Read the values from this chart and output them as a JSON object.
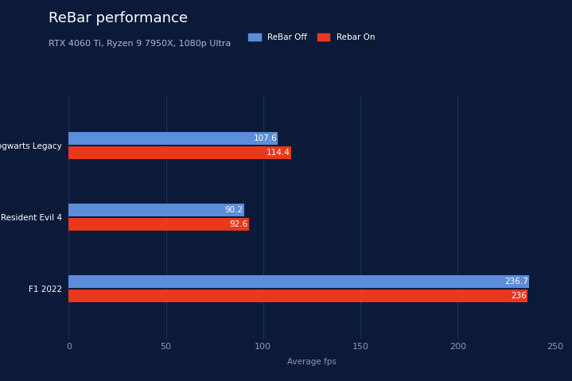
{
  "title": "ReBar performance",
  "subtitle": "RTX 4060 Ti, Ryzen 9 7950X, 1080p Ultra",
  "xlabel": "Average fps",
  "categories": [
    "F1 2022",
    "Resident Evil 4",
    "Hogwarts Legacy"
  ],
  "rebar_off": [
    236.7,
    90.2,
    107.6
  ],
  "rebar_on": [
    236,
    92.6,
    114.4
  ],
  "color_off": "#5b8dd9",
  "color_on": "#e8391d",
  "background_color": "#0c1a3a",
  "text_color": "#ffffff",
  "grid_color": "#1e3060",
  "xlim": [
    0,
    250
  ],
  "xticks": [
    0,
    50,
    100,
    150,
    200,
    250
  ],
  "legend_off": "ReBar Off",
  "legend_on": "Rebar On",
  "title_fontsize": 13,
  "subtitle_fontsize": 8,
  "label_fontsize": 7.5,
  "tick_fontsize": 8,
  "value_fontsize": 7.5
}
